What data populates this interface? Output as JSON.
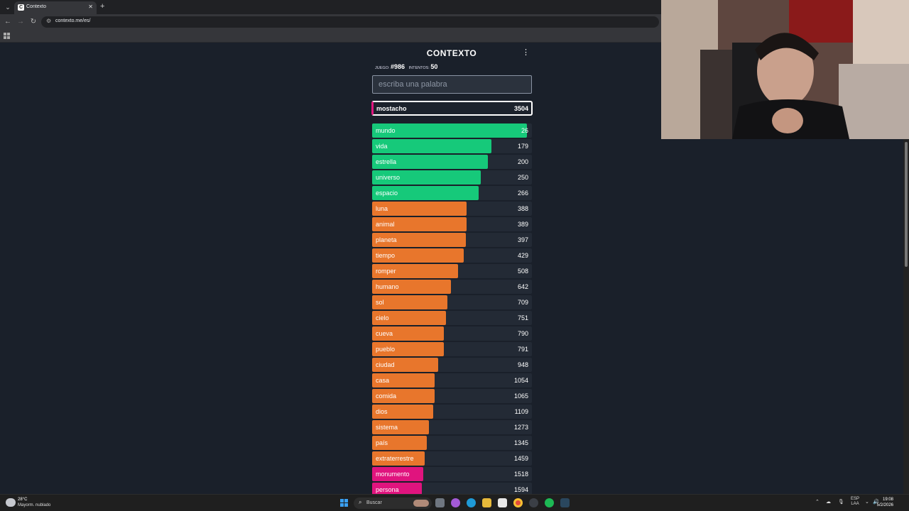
{
  "browser": {
    "tab_title": "Contexto",
    "tab_favicon": "C",
    "url": "contexto.me/es/",
    "new_tab_label": "+"
  },
  "game": {
    "title": "CONTEXTO",
    "game_label": "juego:",
    "game_number": "#986",
    "attempts_label": "intentos:",
    "attempts": "50",
    "input_placeholder": "escriba una palabra",
    "last_guess": {
      "word": "mostacho",
      "rank": "3504",
      "color": "#e0147e"
    },
    "colors": {
      "green": "#16c97a",
      "orange": "#e8762c",
      "pink": "#e0147e",
      "track": "#232a35"
    },
    "guesses": [
      {
        "word": "mundo",
        "rank": "26",
        "color": "green"
      },
      {
        "word": "vida",
        "rank": "179",
        "color": "green"
      },
      {
        "word": "estrella",
        "rank": "200",
        "color": "green"
      },
      {
        "word": "universo",
        "rank": "250",
        "color": "green"
      },
      {
        "word": "espacio",
        "rank": "266",
        "color": "green"
      },
      {
        "word": "luna",
        "rank": "388",
        "color": "orange"
      },
      {
        "word": "animal",
        "rank": "389",
        "color": "orange"
      },
      {
        "word": "planeta",
        "rank": "397",
        "color": "orange"
      },
      {
        "word": "tiempo",
        "rank": "429",
        "color": "orange"
      },
      {
        "word": "romper",
        "rank": "508",
        "color": "orange"
      },
      {
        "word": "humano",
        "rank": "642",
        "color": "orange"
      },
      {
        "word": "sol",
        "rank": "709",
        "color": "orange"
      },
      {
        "word": "cielo",
        "rank": "751",
        "color": "orange"
      },
      {
        "word": "cueva",
        "rank": "790",
        "color": "orange"
      },
      {
        "word": "pueblo",
        "rank": "791",
        "color": "orange"
      },
      {
        "word": "ciudad",
        "rank": "948",
        "color": "orange"
      },
      {
        "word": "casa",
        "rank": "1054",
        "color": "orange"
      },
      {
        "word": "comida",
        "rank": "1065",
        "color": "orange"
      },
      {
        "word": "dios",
        "rank": "1109",
        "color": "orange"
      },
      {
        "word": "sistema",
        "rank": "1273",
        "color": "orange"
      },
      {
        "word": "país",
        "rank": "1345",
        "color": "orange"
      },
      {
        "word": "extraterrestre",
        "rank": "1459",
        "color": "orange"
      },
      {
        "word": "monumento",
        "rank": "1518",
        "color": "pink"
      },
      {
        "word": "persona",
        "rank": "1594",
        "color": "pink"
      }
    ]
  },
  "taskbar": {
    "weather_temp": "28°C",
    "weather_desc": "Mayorm. nublado",
    "search_label": "Buscar",
    "lang_line1": "ESP",
    "lang_line2": "LAA",
    "time": "19:08",
    "date": "5/2/2026",
    "apps": [
      "file-explorer",
      "copilot",
      "edge",
      "folder",
      "store",
      "chrome",
      "steam-sync",
      "spotify",
      "steam"
    ]
  }
}
